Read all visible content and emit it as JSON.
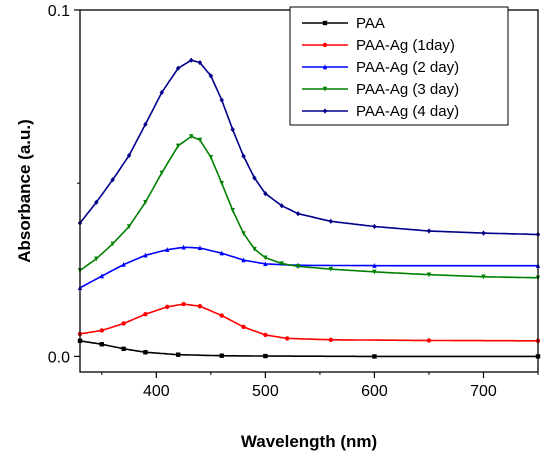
{
  "chart_data": {
    "type": "line",
    "xlabel": "Wavelength (nm)",
    "ylabel": "Absorbance (a.u.)",
    "xlim": [
      330,
      750
    ],
    "ylim": [
      -0.0045,
      0.1
    ],
    "x_ticks": [
      400,
      500,
      600,
      700
    ],
    "x_tick_labels": [
      "400",
      "500",
      "600",
      "700"
    ],
    "y_ticks": [
      0.0,
      0.1
    ],
    "y_tick_labels": [
      "0.0",
      "0.1"
    ],
    "grid": false,
    "legend_position": "top-right",
    "series": [
      {
        "name": "PAA",
        "color": "#000000",
        "marker": "square",
        "points": [
          [
            330,
            0.0045
          ],
          [
            350,
            0.0035
          ],
          [
            370,
            0.0022
          ],
          [
            390,
            0.0012
          ],
          [
            420,
            0.0005
          ],
          [
            460,
            0.0002
          ],
          [
            500,
            0.0001
          ],
          [
            600,
            0.0
          ],
          [
            750,
            0.0
          ]
        ]
      },
      {
        "name": "PAA-Ag (1day)",
        "color": "#ff0000",
        "marker": "circle",
        "points": [
          [
            330,
            0.0065
          ],
          [
            350,
            0.0075
          ],
          [
            370,
            0.0095
          ],
          [
            390,
            0.0122
          ],
          [
            410,
            0.0143
          ],
          [
            425,
            0.0151
          ],
          [
            440,
            0.0145
          ],
          [
            460,
            0.0118
          ],
          [
            480,
            0.0085
          ],
          [
            500,
            0.0062
          ],
          [
            520,
            0.0052
          ],
          [
            560,
            0.0048
          ],
          [
            650,
            0.0046
          ],
          [
            750,
            0.0045
          ]
        ]
      },
      {
        "name": "PAA-Ag (2 day)",
        "color": "#0000ff",
        "marker": "triangle-up",
        "points": [
          [
            330,
            0.0198
          ],
          [
            350,
            0.0232
          ],
          [
            370,
            0.0265
          ],
          [
            390,
            0.0292
          ],
          [
            410,
            0.0308
          ],
          [
            425,
            0.0315
          ],
          [
            440,
            0.0313
          ],
          [
            460,
            0.0298
          ],
          [
            480,
            0.0278
          ],
          [
            500,
            0.0267
          ],
          [
            530,
            0.0263
          ],
          [
            600,
            0.0262
          ],
          [
            750,
            0.0262
          ]
        ]
      },
      {
        "name": "PAA-Ag (3 day)",
        "color": "#008000",
        "marker": "triangle-down",
        "points": [
          [
            330,
            0.0248
          ],
          [
            345,
            0.0282
          ],
          [
            360,
            0.0325
          ],
          [
            375,
            0.0375
          ],
          [
            390,
            0.0445
          ],
          [
            405,
            0.053
          ],
          [
            420,
            0.0608
          ],
          [
            432,
            0.0635
          ],
          [
            440,
            0.0625
          ],
          [
            450,
            0.0575
          ],
          [
            460,
            0.05
          ],
          [
            470,
            0.0422
          ],
          [
            480,
            0.0355
          ],
          [
            490,
            0.031
          ],
          [
            500,
            0.0285
          ],
          [
            515,
            0.0268
          ],
          [
            530,
            0.026
          ],
          [
            560,
            0.0252
          ],
          [
            600,
            0.0244
          ],
          [
            650,
            0.0236
          ],
          [
            700,
            0.023
          ],
          [
            750,
            0.0227
          ]
        ]
      },
      {
        "name": "PAA-Ag (4 day)",
        "color": "#00008b",
        "marker": "diamond",
        "points": [
          [
            330,
            0.0385
          ],
          [
            345,
            0.0445
          ],
          [
            360,
            0.051
          ],
          [
            375,
            0.058
          ],
          [
            390,
            0.067
          ],
          [
            405,
            0.0762
          ],
          [
            420,
            0.0832
          ],
          [
            432,
            0.0855
          ],
          [
            440,
            0.0848
          ],
          [
            450,
            0.081
          ],
          [
            460,
            0.074
          ],
          [
            470,
            0.0655
          ],
          [
            480,
            0.0578
          ],
          [
            490,
            0.0515
          ],
          [
            500,
            0.047
          ],
          [
            515,
            0.0435
          ],
          [
            530,
            0.0412
          ],
          [
            560,
            0.039
          ],
          [
            600,
            0.0375
          ],
          [
            650,
            0.0362
          ],
          [
            700,
            0.0356
          ],
          [
            750,
            0.0352
          ]
        ]
      }
    ]
  }
}
